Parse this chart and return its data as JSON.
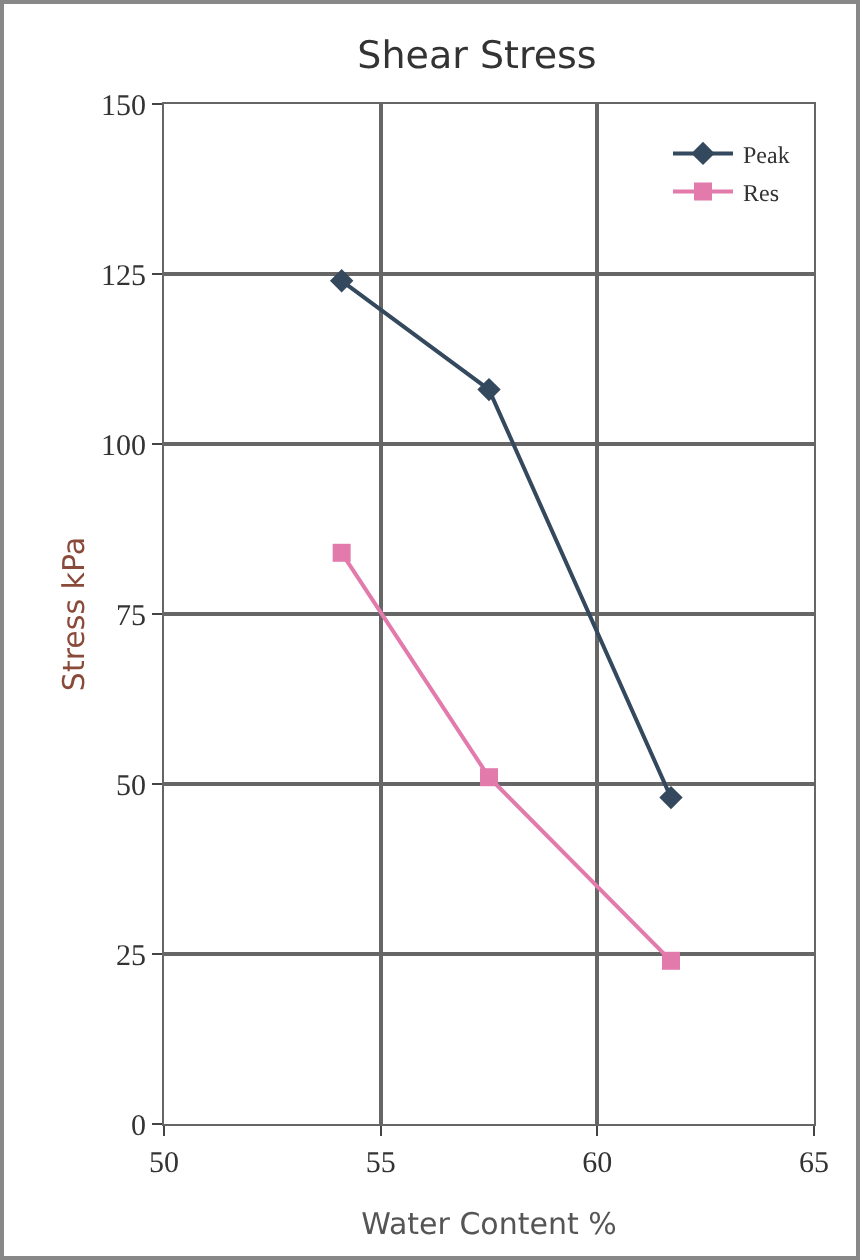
{
  "chart_data": {
    "type": "line",
    "title": "Shear Stress",
    "xlabel": "Water Content %",
    "ylabel": "Stress kPa",
    "series": [
      {
        "name": "Peak",
        "color": "#34495e",
        "marker": "diamond",
        "x": [
          54.1,
          57.5,
          61.7
        ],
        "values": [
          124,
          108,
          48
        ]
      },
      {
        "name": "Res",
        "color": "#e27aab",
        "marker": "square",
        "x": [
          54.1,
          57.5,
          61.7
        ],
        "values": [
          84,
          51,
          24
        ]
      }
    ],
    "xlim": [
      50,
      65
    ],
    "xticks": [
      50,
      55,
      60,
      65
    ],
    "ylim": [
      0,
      150
    ],
    "yticks": [
      0,
      25,
      50,
      75,
      100,
      125,
      150
    ],
    "grid": true,
    "legend": "top right",
    "line_style": "solid"
  }
}
